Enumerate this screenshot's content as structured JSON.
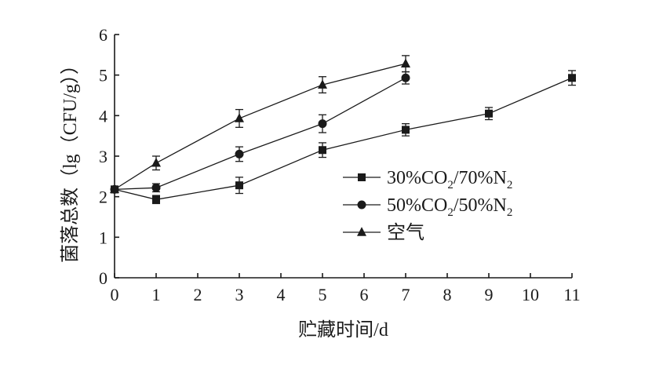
{
  "chart_data": {
    "type": "line",
    "xlabel": "贮藏时间/d",
    "ylabel": "菌落总数（lg（CFU/g））",
    "xlim": [
      0,
      11
    ],
    "ylim": [
      0,
      6
    ],
    "x_ticks": [
      0,
      1,
      2,
      3,
      4,
      5,
      6,
      7,
      8,
      9,
      10,
      11
    ],
    "y_ticks": [
      0,
      1,
      2,
      3,
      4,
      5,
      6
    ],
    "grid": false,
    "legend_position": "center-right",
    "series": [
      {
        "name": "30%CO2/70%N2",
        "legend_parts": [
          "30%CO",
          "2",
          "/70%N",
          "2"
        ],
        "marker": "square",
        "x": [
          0,
          1,
          3,
          5,
          7,
          9,
          11
        ],
        "y": [
          2.18,
          1.93,
          2.28,
          3.15,
          3.65,
          4.05,
          4.93
        ],
        "err": [
          0.08,
          0.1,
          0.2,
          0.18,
          0.15,
          0.15,
          0.18
        ]
      },
      {
        "name": "50%CO2/50%N2",
        "legend_parts": [
          "50%CO",
          "2",
          "/50%N",
          "2"
        ],
        "marker": "circle",
        "x": [
          0,
          1,
          3,
          5,
          7
        ],
        "y": [
          2.18,
          2.22,
          3.05,
          3.8,
          4.93
        ],
        "err": [
          0.08,
          0.1,
          0.18,
          0.22,
          0.15
        ]
      },
      {
        "name": "空气",
        "legend_parts": [
          "空气"
        ],
        "marker": "triangle",
        "x": [
          0,
          1,
          3,
          5,
          7
        ],
        "y": [
          2.18,
          2.83,
          3.93,
          4.76,
          5.28
        ],
        "err": [
          0.08,
          0.17,
          0.22,
          0.2,
          0.2
        ]
      }
    ]
  }
}
